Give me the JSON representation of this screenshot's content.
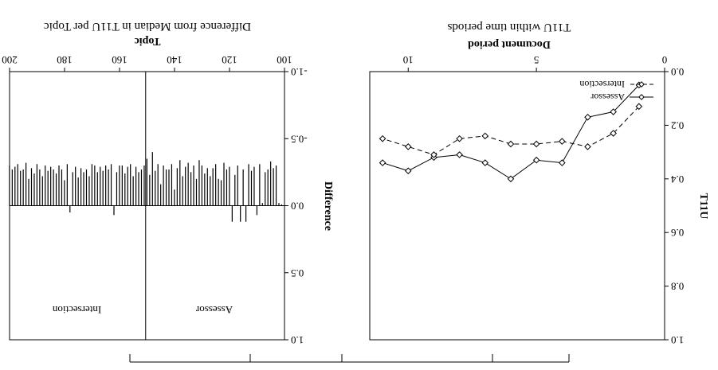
{
  "orientation": "rotated-180",
  "chart_data": [
    {
      "type": "line",
      "title": "T11U within time periods",
      "xlabel": "Document period",
      "ylabel": "T11U",
      "xlim": [
        0,
        11.5
      ],
      "ylim": [
        0,
        1.0
      ],
      "xticks": [
        0,
        5,
        10
      ],
      "xtick_labels": [
        "0",
        "5",
        "10"
      ],
      "yticks": [
        0.0,
        0.2,
        0.4,
        0.6,
        0.8,
        1.0
      ],
      "ytick_labels": [
        "0.0",
        "0.2",
        "0.4",
        "0.6",
        "0.8",
        "1.0"
      ],
      "legend_position": "bottom-left",
      "x": [
        1,
        2,
        3,
        4,
        5,
        6,
        7,
        8,
        9,
        10,
        11
      ],
      "series": [
        {
          "name": "Assessor",
          "style": "solid",
          "values": [
            0.05,
            0.15,
            0.17,
            0.34,
            0.33,
            0.4,
            0.34,
            0.31,
            0.32,
            0.37,
            0.34
          ]
        },
        {
          "name": "Intersection",
          "style": "dashed",
          "values": [
            0.13,
            0.23,
            0.28,
            0.26,
            0.27,
            0.27,
            0.24,
            0.25,
            0.31,
            0.28,
            0.25
          ]
        }
      ]
    },
    {
      "type": "bar",
      "title": "Difference from Median in T11U per Topic",
      "xlabel": "Topic",
      "ylabel": "Difference",
      "xlim": [
        100,
        200
      ],
      "ylim": [
        -1.0,
        1.0
      ],
      "xticks": [
        100,
        120,
        140,
        160,
        180,
        200
      ],
      "xtick_labels": [
        "100",
        "120",
        "140",
        "160",
        "180",
        "200"
      ],
      "yticks": [
        -1.0,
        -0.5,
        0.0,
        0.5,
        1.0
      ],
      "ytick_labels": [
        "-1.0",
        "-0.5",
        "0.0",
        "0.5",
        "1.0"
      ],
      "divider_topic": 150,
      "panels": [
        {
          "name": "Assessor",
          "topic_range": [
            101,
            150
          ]
        },
        {
          "name": "Intersection",
          "topic_range": [
            151,
            200
          ]
        }
      ],
      "x": [
        101,
        102,
        103,
        104,
        105,
        106,
        107,
        108,
        109,
        110,
        111,
        112,
        113,
        114,
        115,
        116,
        117,
        118,
        119,
        120,
        121,
        122,
        123,
        124,
        125,
        126,
        127,
        128,
        129,
        130,
        131,
        132,
        133,
        134,
        135,
        136,
        137,
        138,
        139,
        140,
        141,
        142,
        143,
        144,
        145,
        146,
        147,
        148,
        149,
        150,
        151,
        152,
        153,
        154,
        155,
        156,
        157,
        158,
        159,
        160,
        161,
        162,
        163,
        164,
        165,
        166,
        167,
        168,
        169,
        170,
        171,
        172,
        173,
        174,
        175,
        176,
        177,
        178,
        179,
        180,
        181,
        182,
        183,
        184,
        185,
        186,
        187,
        188,
        189,
        190,
        191,
        192,
        193,
        194,
        195,
        196,
        197,
        198,
        199,
        200
      ],
      "values": [
        -0.01,
        -0.02,
        -0.3,
        -0.28,
        -0.33,
        -0.27,
        -0.25,
        -0.02,
        -0.31,
        0.07,
        -0.29,
        -0.26,
        -0.31,
        0.12,
        -0.27,
        0.12,
        -0.3,
        -0.23,
        0.12,
        -0.29,
        -0.27,
        -0.32,
        -0.19,
        -0.2,
        -0.31,
        -0.28,
        -0.22,
        -0.28,
        -0.24,
        -0.3,
        -0.34,
        -0.2,
        -0.3,
        -0.25,
        -0.32,
        -0.29,
        -0.22,
        -0.34,
        -0.28,
        -0.12,
        -0.31,
        -0.27,
        -0.27,
        -0.3,
        -0.16,
        -0.31,
        -0.26,
        -0.4,
        -0.23,
        -0.35,
        -0.3,
        -0.27,
        -0.25,
        -0.29,
        -0.22,
        -0.31,
        -0.29,
        -0.24,
        -0.3,
        -0.3,
        -0.25,
        0.07,
        -0.31,
        -0.27,
        -0.3,
        -0.26,
        -0.29,
        -0.25,
        -0.3,
        -0.31,
        -0.22,
        -0.27,
        -0.25,
        -0.28,
        -0.21,
        -0.29,
        -0.25,
        0.05,
        -0.31,
        -0.19,
        -0.27,
        -0.3,
        -0.24,
        -0.27,
        -0.29,
        -0.26,
        -0.3,
        -0.22,
        -0.27,
        -0.31,
        -0.24,
        -0.28,
        -0.2,
        -0.32,
        -0.27,
        -0.26,
        -0.31,
        -0.29,
        -0.27,
        -0.3
      ]
    }
  ]
}
